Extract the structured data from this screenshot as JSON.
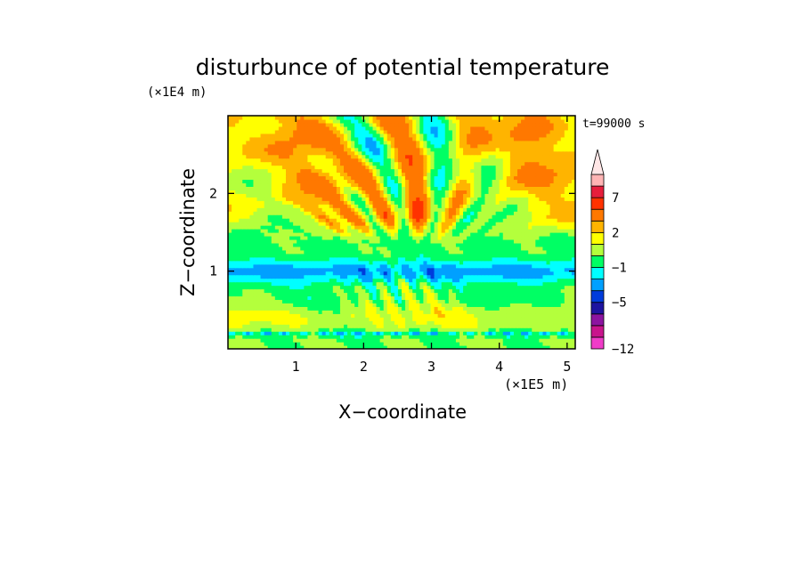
{
  "chart_data": {
    "type": "heatmap",
    "title": "disturbunce of potential temperature",
    "time_label": "t=99000 s",
    "xlabel": "X−coordinate",
    "ylabel": "Z−coordinate",
    "x_unit": "(×1E5 m)",
    "y_unit": "(×1E4 m)",
    "xlim": [
      0,
      5.12
    ],
    "ylim": [
      0,
      3.0
    ],
    "x_ticks": [
      {
        "v": 1,
        "label": "1"
      },
      {
        "v": 2,
        "label": "2"
      },
      {
        "v": 3,
        "label": "3"
      },
      {
        "v": 4,
        "label": "4"
      },
      {
        "v": 5,
        "label": "5"
      }
    ],
    "y_ticks": [
      {
        "v": 1,
        "label": "1"
      },
      {
        "v": 2,
        "label": "2"
      }
    ],
    "colorbar": {
      "extend": "max",
      "levels": [
        -12,
        -11,
        -9,
        -7,
        -5,
        -3,
        -2,
        -1,
        0,
        1,
        2,
        3,
        5,
        7,
        9,
        11
      ],
      "colors": [
        "#f03cc8",
        "#c8148c",
        "#8c14a0",
        "#1e14a0",
        "#003cdc",
        "#00a0ff",
        "#00ffff",
        "#00ff64",
        "#b4ff3c",
        "#ffff00",
        "#ffb400",
        "#ff7800",
        "#ff3200",
        "#e61e3c",
        "#ffb4b4"
      ],
      "tip_color": "#ffe6e6",
      "labels": [
        {
          "v": -12,
          "label": "−12"
        },
        {
          "v": -5,
          "label": "−5"
        },
        {
          "v": -1,
          "label": "−1"
        },
        {
          "v": 2,
          "label": "2"
        },
        {
          "v": 7,
          "label": "7"
        }
      ]
    }
  }
}
